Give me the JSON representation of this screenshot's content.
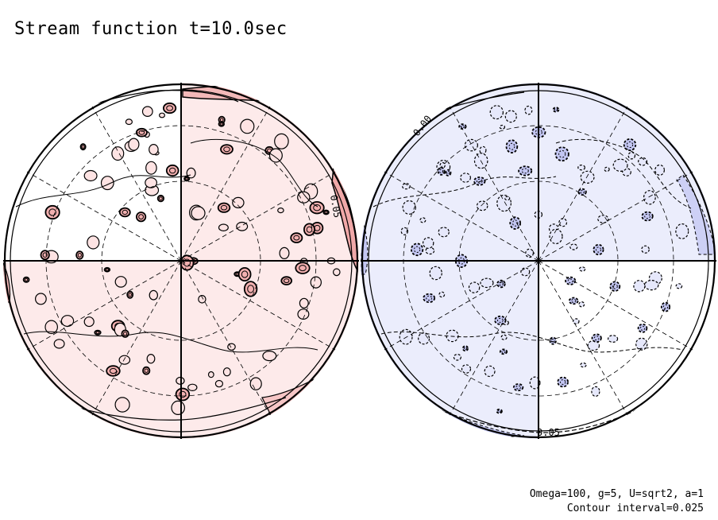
{
  "chart_data": {
    "type": "contour",
    "title": "Stream function t=10.0sec",
    "variable": "stream function",
    "time": "10.0sec",
    "projection": "orthographic, two hemispheres",
    "parameters": "Omega=100, g=5, U=sqrt2, a=1",
    "contour_interval_text": "Contour interval=0.025",
    "contour_interval": 0.025,
    "contour_labels": [
      "0.05",
      "0.00",
      "0.05"
    ],
    "panels": [
      {
        "name": "left",
        "sign": "positive",
        "line_style": "solid",
        "shading": "#fde3e3",
        "strong_shading": "#f2b0b0"
      },
      {
        "name": "right",
        "sign": "negative",
        "line_style": "dashed",
        "shading": "#e6e8fb",
        "strong_shading": "#c3c6f2"
      }
    ],
    "grid": true
  }
}
